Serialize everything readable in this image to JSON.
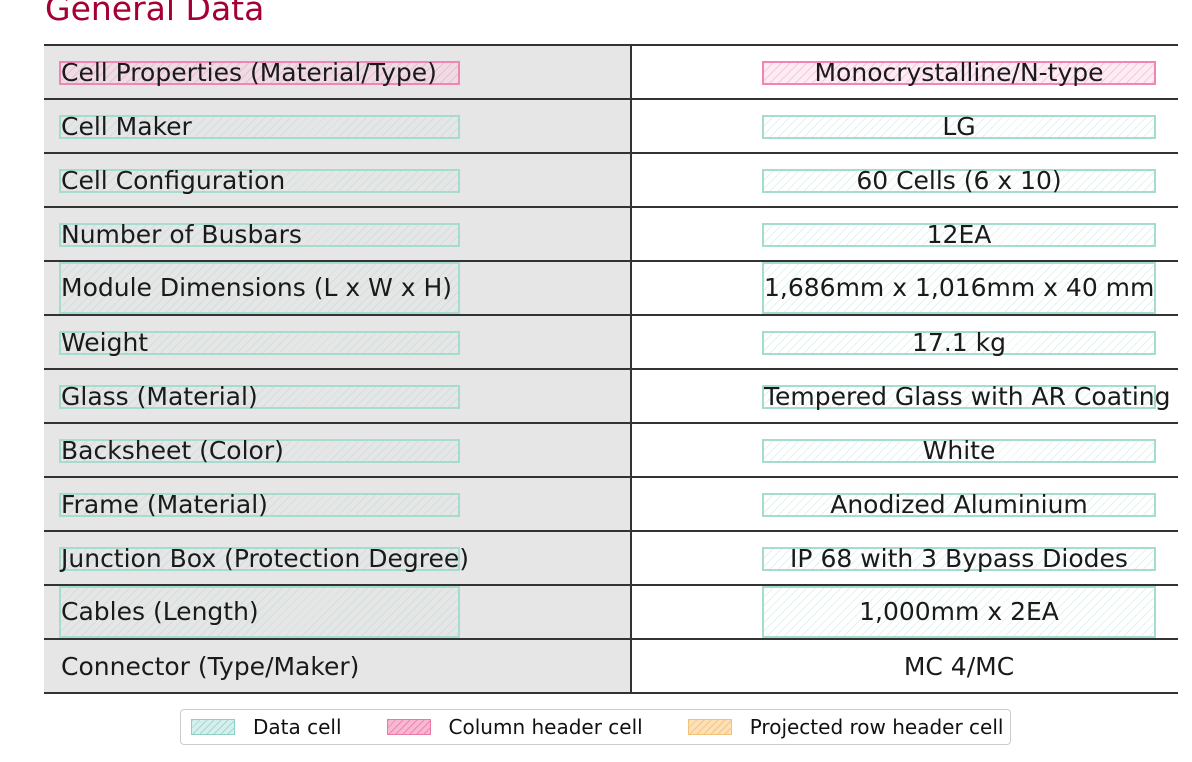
{
  "section_title": "General Data",
  "rows": [
    {
      "label": "Cell Properties (Material/Type)",
      "value": "Monocrystalline/N-type",
      "kind": "header"
    },
    {
      "label": "Cell Maker",
      "value": "LG",
      "kind": "data"
    },
    {
      "label": "Cell Configuration",
      "value": "60 Cells (6 x 10)",
      "kind": "data"
    },
    {
      "label": "Number of Busbars",
      "value": "12EA",
      "kind": "data"
    },
    {
      "label": "Module Dimensions (L x W x H)",
      "value": "1,686mm x 1,016mm x 40 mm",
      "kind": "data"
    },
    {
      "label": "Weight",
      "value": "17.1 kg",
      "kind": "data"
    },
    {
      "label": "Glass (Material)",
      "value": "Tempered Glass with AR Coating",
      "kind": "data"
    },
    {
      "label": "Backsheet (Color)",
      "value": "White",
      "kind": "data"
    },
    {
      "label": "Frame (Material)",
      "value": "Anodized Aluminium",
      "kind": "data"
    },
    {
      "label": "Junction Box (Protection Degree)",
      "value": "IP 68 with 3 Bypass Diodes",
      "kind": "data"
    },
    {
      "label": "Cables (Length)",
      "value": "1,000mm x 2EA",
      "kind": "data"
    },
    {
      "label": "Connector (Type/Maker)",
      "value": "MC 4/MC",
      "kind": "plain"
    }
  ],
  "legend": {
    "data_cell": "Data cell",
    "column_header_cell": "Column header cell",
    "projected_row_header_cell": "Projected row header cell"
  },
  "colors": {
    "data_cell": "#a6dccf",
    "column_header_cell": "#ef86b4",
    "projected_row_header_cell": "#f2c27a",
    "title": "#a50034"
  }
}
